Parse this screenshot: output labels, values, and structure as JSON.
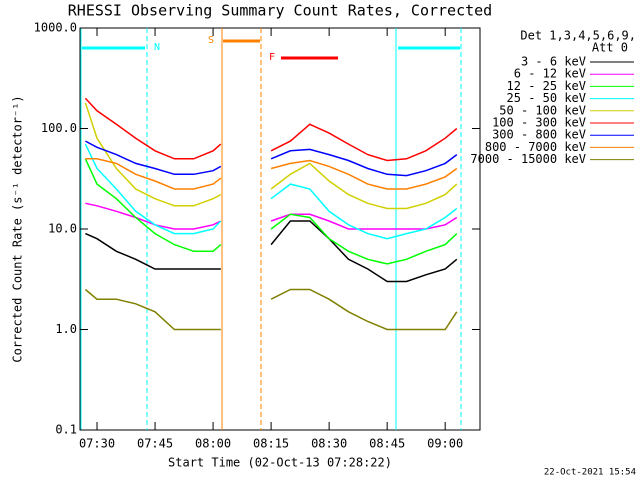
{
  "chart_data": {
    "type": "line",
    "title": "RHESSI Observing Summary Count Rates, Corrected",
    "ylabel": "Corrected Count Rate (s⁻¹ detector⁻¹)",
    "xlabel": "Start Time (02-Oct-13 07:28:22)",
    "legend_header": [
      "Det 1,3,4,5,6,9,",
      "Att 0"
    ],
    "footer": "22-Oct-2021 15:54",
    "flags": [
      "N",
      "S",
      "F"
    ],
    "log_y": true,
    "x": [
      447,
      450,
      455,
      460,
      465,
      470,
      475,
      480,
      482,
      490,
      495,
      500,
      505,
      510,
      515,
      520,
      525,
      530,
      535,
      540,
      543
    ],
    "xlim": [
      445.6,
      549
    ],
    "xticks": [
      {
        "value": 450,
        "label": "07:30"
      },
      {
        "value": 465,
        "label": "07:45"
      },
      {
        "value": 480,
        "label": "08:00"
      },
      {
        "value": 495,
        "label": "08:15"
      },
      {
        "value": 510,
        "label": "08:30"
      },
      {
        "value": 525,
        "label": "08:45"
      },
      {
        "value": 540,
        "label": "09:00"
      }
    ],
    "ylim": [
      0.1,
      1000
    ],
    "yticks": [
      {
        "value": 1000,
        "label": "1000.0"
      },
      {
        "value": 100,
        "label": "100.0"
      },
      {
        "value": 10,
        "label": "10.0"
      },
      {
        "value": 1,
        "label": "1.0"
      },
      0.1
    ],
    "series": [
      {
        "name": "3 - 6 keV",
        "color": "#000000",
        "values": [
          9,
          8,
          6,
          5,
          4,
          4,
          4,
          4,
          4,
          null,
          7,
          12,
          12,
          8,
          5,
          4,
          3,
          3,
          3.5,
          4,
          5
        ]
      },
      {
        "name": "6 - 12 keV",
        "color": "#ff00ff",
        "values": [
          18,
          17,
          15,
          13,
          11,
          10,
          10,
          11,
          12,
          null,
          12,
          14,
          14,
          12,
          10,
          10,
          10,
          10,
          10,
          11,
          13
        ]
      },
      {
        "name": "12 - 25 keV",
        "color": "#00ff00",
        "values": [
          50,
          28,
          20,
          13,
          9,
          7,
          6,
          6,
          7,
          null,
          10,
          14,
          13,
          8,
          6,
          5,
          4.5,
          5,
          6,
          7,
          9
        ]
      },
      {
        "name": "25 - 50 keV",
        "color": "#00ffff",
        "values": [
          70,
          40,
          25,
          15,
          11,
          9,
          9,
          10,
          12,
          null,
          20,
          28,
          25,
          15,
          11,
          9,
          8,
          9,
          10,
          13,
          16
        ]
      },
      {
        "name": "50 - 100 keV",
        "color": "#d0d000",
        "values": [
          180,
          80,
          40,
          25,
          20,
          17,
          17,
          20,
          22,
          null,
          25,
          35,
          45,
          30,
          22,
          18,
          16,
          16,
          18,
          22,
          28
        ]
      },
      {
        "name": "100 - 300 keV",
        "color": "#ff0000",
        "values": [
          200,
          150,
          110,
          80,
          60,
          50,
          50,
          60,
          70,
          null,
          60,
          75,
          110,
          90,
          70,
          55,
          48,
          50,
          60,
          80,
          100
        ]
      },
      {
        "name": "300 - 800 keV",
        "color": "#0000ff",
        "values": [
          75,
          65,
          55,
          45,
          40,
          35,
          35,
          38,
          42,
          null,
          50,
          60,
          62,
          55,
          48,
          40,
          35,
          34,
          38,
          45,
          55
        ]
      },
      {
        "name": "800 - 7000 keV",
        "color": "#ff8000",
        "values": [
          50,
          50,
          45,
          35,
          30,
          25,
          25,
          28,
          32,
          null,
          40,
          45,
          48,
          42,
          35,
          28,
          25,
          25,
          28,
          33,
          40
        ]
      },
      {
        "name": "7000 - 15000 keV",
        "color": "#808000",
        "values": [
          2.5,
          2,
          2,
          1.8,
          1.5,
          1,
          1,
          1,
          1,
          null,
          2,
          2.5,
          2.5,
          2,
          1.5,
          1.2,
          1,
          1,
          1,
          1,
          1.5
        ]
      }
    ]
  }
}
